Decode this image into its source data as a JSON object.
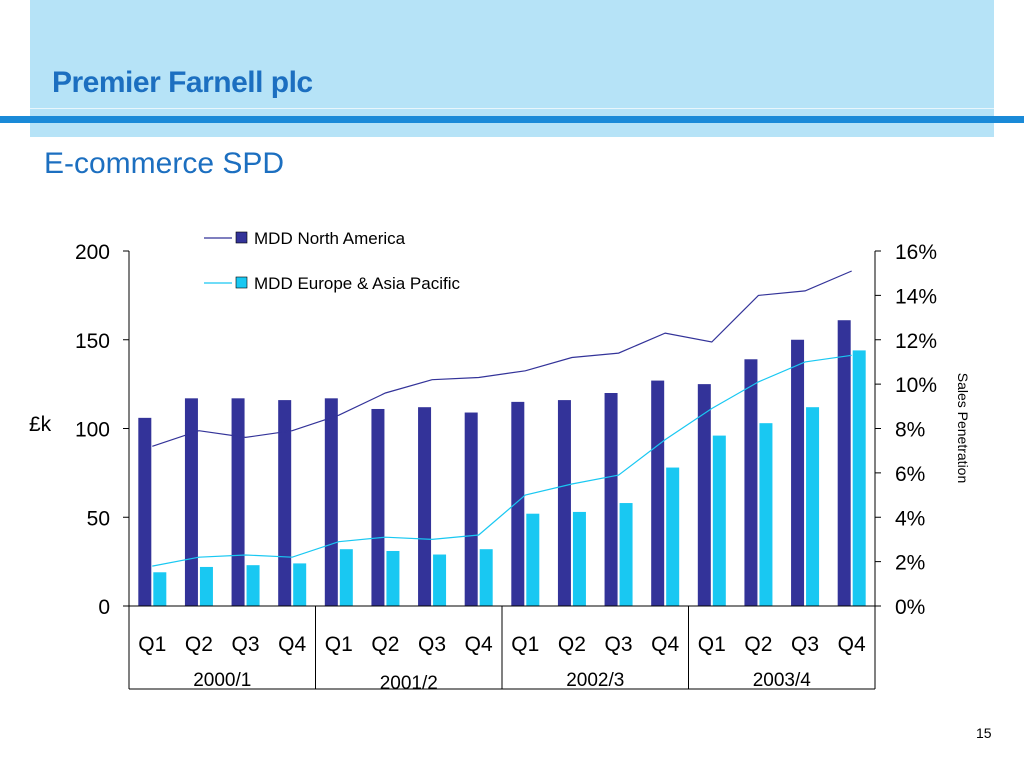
{
  "header": {
    "company": "Premier Farnell plc",
    "title": "E-commerce SPD",
    "brand_color": "#1c6fc0",
    "band_color": "#b6e3f7",
    "rule_color": "#1a8ad8"
  },
  "page_number": "15",
  "chart_data": {
    "type": "bar",
    "title": "",
    "ylabel": "£k",
    "y2label": "Sales Penetration",
    "ylim": [
      0,
      200
    ],
    "y2lim": [
      0,
      16
    ],
    "yticks": [
      "0",
      "50",
      "100",
      "150",
      "200"
    ],
    "y2ticks": [
      "0%",
      "2%",
      "4%",
      "6%",
      "8%",
      "10%",
      "12%",
      "14%",
      "16%"
    ],
    "categories": [
      "Q1",
      "Q2",
      "Q3",
      "Q4",
      "Q1",
      "Q2",
      "Q3",
      "Q4",
      "Q1",
      "Q2",
      "Q3",
      "Q4",
      "Q1",
      "Q2",
      "Q3",
      "Q4"
    ],
    "groups": [
      "2000/1",
      "2001/2",
      "2002/3",
      "2003/4"
    ],
    "legend_position": "top-center",
    "grid": false,
    "series": [
      {
        "name": "MDD North America",
        "color": "#333399",
        "values": [
          106,
          117,
          117,
          116,
          117,
          111,
          112,
          109,
          115,
          116,
          120,
          127,
          125,
          139,
          150,
          161
        ],
        "penetration": [
          7.2,
          7.9,
          7.6,
          7.9,
          8.6,
          9.6,
          10.2,
          10.3,
          10.6,
          11.2,
          11.4,
          12.3,
          11.9,
          14.0,
          14.2,
          15.1
        ]
      },
      {
        "name": "MDD Europe & Asia Pacific",
        "color": "#19c8f2",
        "values": [
          19,
          22,
          23,
          24,
          32,
          31,
          29,
          32,
          52,
          53,
          58,
          78,
          96,
          103,
          112,
          144
        ],
        "penetration": [
          1.8,
          2.2,
          2.3,
          2.2,
          2.9,
          3.1,
          3.0,
          3.2,
          5.0,
          5.5,
          5.9,
          7.5,
          8.9,
          10.1,
          11.0,
          11.3
        ]
      }
    ]
  }
}
